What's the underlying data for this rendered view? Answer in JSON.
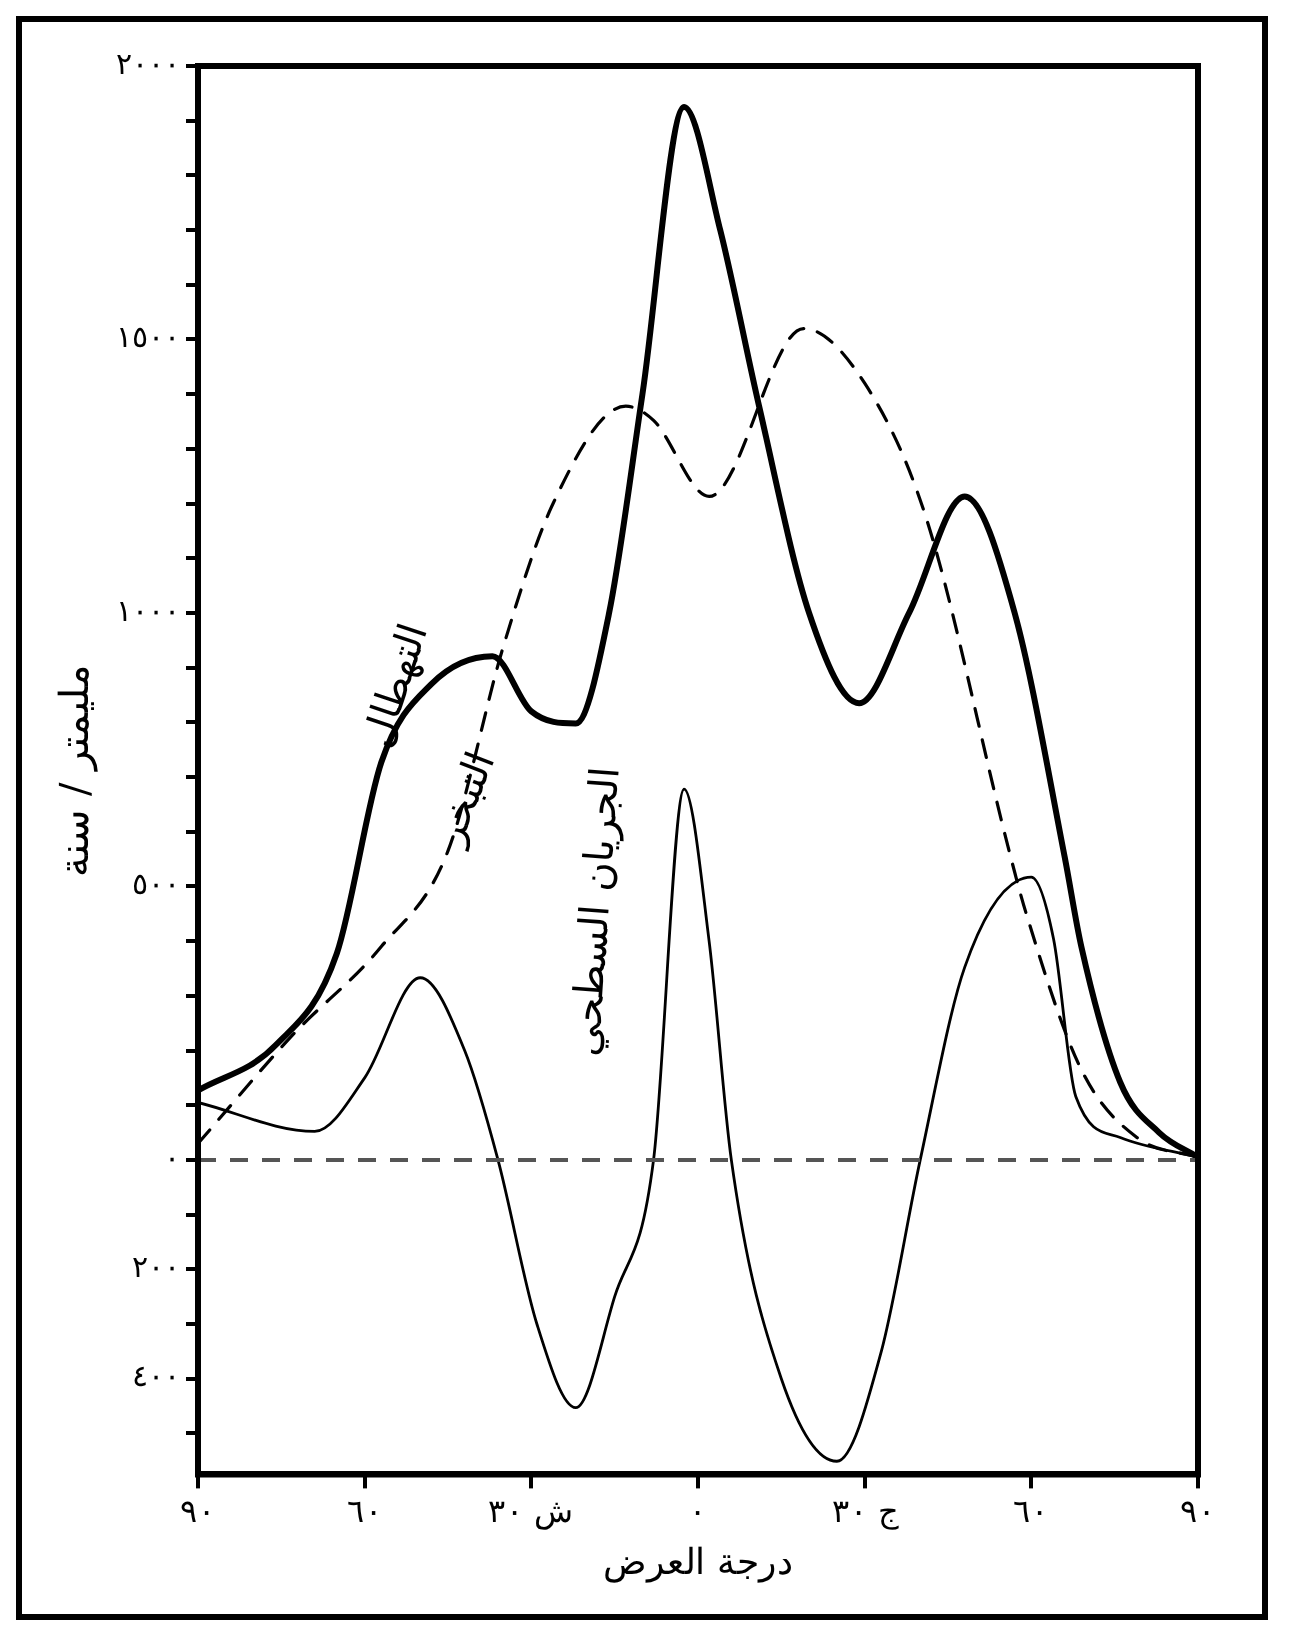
{
  "chart_data": {
    "type": "line",
    "xlabel": "درجة العرض",
    "ylabel": "مليمتر / سنة",
    "xlim": [
      90,
      -90
    ],
    "xticks": [
      {
        "value": 90,
        "label": "٩٠"
      },
      {
        "value": 60,
        "label": "٦٠"
      },
      {
        "value": 30,
        "label": "ش ٣٠"
      },
      {
        "value": 0,
        "label": "٠"
      },
      {
        "value": -30,
        "label": "ج ٣٠"
      },
      {
        "value": -60,
        "label": "٦٠"
      },
      {
        "value": -90,
        "label": "٩٠"
      }
    ],
    "ylim": [
      -575,
      2000
    ],
    "yticks": [
      {
        "value": -500,
        "label": null
      },
      {
        "value": -400,
        "label": "٤٠٠"
      },
      {
        "value": -300,
        "label": null
      },
      {
        "value": -200,
        "label": "٢٠٠"
      },
      {
        "value": -100,
        "label": null
      },
      {
        "value": 0,
        "label": "٠"
      },
      {
        "value": 100,
        "label": null
      },
      {
        "value": 200,
        "label": null
      },
      {
        "value": 300,
        "label": null
      },
      {
        "value": 400,
        "label": null
      },
      {
        "value": 500,
        "label": "٥٠٠"
      },
      {
        "value": 600,
        "label": null
      },
      {
        "value": 700,
        "label": null
      },
      {
        "value": 800,
        "label": null
      },
      {
        "value": 900,
        "label": null
      },
      {
        "value": 1000,
        "label": "١٠٠٠"
      },
      {
        "value": 1100,
        "label": null
      },
      {
        "value": 1200,
        "label": null
      },
      {
        "value": 1300,
        "label": null
      },
      {
        "value": 1400,
        "label": null
      },
      {
        "value": 1500,
        "label": "١٥٠٠"
      },
      {
        "value": 1600,
        "label": null
      },
      {
        "value": 1700,
        "label": null
      },
      {
        "value": 1800,
        "label": null
      },
      {
        "value": 1900,
        "label": null
      },
      {
        "value": 2000,
        "label": "٢٠٠٠"
      }
    ],
    "grid": false,
    "legend": false,
    "marker": "none",
    "ref_lines": [
      {
        "axis": "y",
        "value": 0,
        "color": "#555555",
        "line_style": "dashed"
      }
    ],
    "series": [
      {
        "name": "التهطال",
        "color": "#000000",
        "line_style": "solid",
        "x": [
          90,
          76,
          65,
          57,
          48,
          37,
          30,
          22,
          16,
          10,
          2.5,
          -4,
          -11,
          -20,
          -29,
          -38,
          -48,
          -57,
          -66,
          -69,
          -76,
          -83,
          -90
        ],
        "values": [
          127,
          210,
          378,
          727,
          870,
          921,
          820,
          798,
          1000,
          1400,
          1925,
          1700,
          1378,
          1000,
          835,
          1000,
          1213,
          1000,
          554,
          390,
          142,
          50,
          5
        ]
      },
      {
        "name": "التبخر",
        "color": "#000000",
        "line_style": "dashed",
        "x": [
          90,
          73,
          57,
          45,
          35,
          26,
          13,
          8,
          -2,
          -19,
          -30,
          -41,
          -56,
          -59,
          -69,
          -79,
          -90
        ],
        "values": [
          30,
          228,
          390,
          565,
          940,
          1202,
          1378,
          1352,
          1213,
          1520,
          1420,
          1176,
          565,
          453,
          165,
          41,
          5
        ]
      },
      {
        "name": "الجريان السطحي",
        "color": "#000000",
        "line_style": "solid",
        "x": [
          90,
          69,
          60,
          50,
          42,
          36,
          29,
          22,
          15,
          8,
          2.5,
          -2,
          -6,
          -15,
          -25,
          -33,
          -40,
          -48,
          -60,
          -64,
          -68,
          -76,
          -90
        ],
        "values": [
          105,
          52,
          150,
          333,
          200,
          0,
          -300,
          -453,
          -250,
          0,
          678,
          400,
          0,
          -400,
          -551,
          -350,
          0,
          352,
          517,
          404,
          116,
          41,
          5
        ]
      }
    ]
  }
}
